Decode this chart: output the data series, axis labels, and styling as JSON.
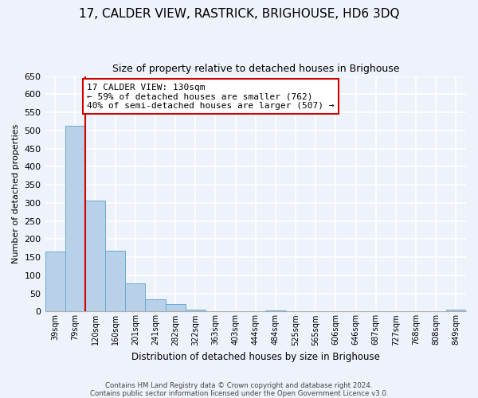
{
  "title": "17, CALDER VIEW, RASTRICK, BRIGHOUSE, HD6 3DQ",
  "subtitle": "Size of property relative to detached houses in Brighouse",
  "xlabel": "Distribution of detached houses by size in Brighouse",
  "ylabel": "Number of detached properties",
  "bar_color": "#b8d0e8",
  "bar_edge_color": "#6aaad4",
  "background_color": "#eef2fb",
  "grid_color": "#ffffff",
  "categories": [
    "39sqm",
    "79sqm",
    "120sqm",
    "160sqm",
    "201sqm",
    "241sqm",
    "282sqm",
    "322sqm",
    "363sqm",
    "403sqm",
    "444sqm",
    "484sqm",
    "525sqm",
    "565sqm",
    "606sqm",
    "646sqm",
    "687sqm",
    "727sqm",
    "768sqm",
    "808sqm",
    "849sqm"
  ],
  "values": [
    165,
    512,
    307,
    168,
    78,
    33,
    20,
    5,
    0,
    0,
    0,
    3,
    0,
    0,
    0,
    0,
    0,
    0,
    0,
    0,
    5
  ],
  "annotation_line1": "17 CALDER VIEW: 130sqm",
  "annotation_line2": "← 59% of detached houses are smaller (762)",
  "annotation_line3": "40% of semi-detached houses are larger (507) →",
  "ylim": [
    0,
    650
  ],
  "yticks": [
    0,
    50,
    100,
    150,
    200,
    250,
    300,
    350,
    400,
    450,
    500,
    550,
    600,
    650
  ],
  "footer_line1": "Contains HM Land Registry data © Crown copyright and database right 2024.",
  "footer_line2": "Contains public sector information licensed under the Open Government Licence v3.0.",
  "line_color": "#cc0000",
  "annotation_box_color": "#ffffff",
  "annotation_box_edge": "#cc0000",
  "title_fontsize": 11,
  "subtitle_fontsize": 9,
  "ylabel_fontsize": 8,
  "xlabel_fontsize": 8.5
}
